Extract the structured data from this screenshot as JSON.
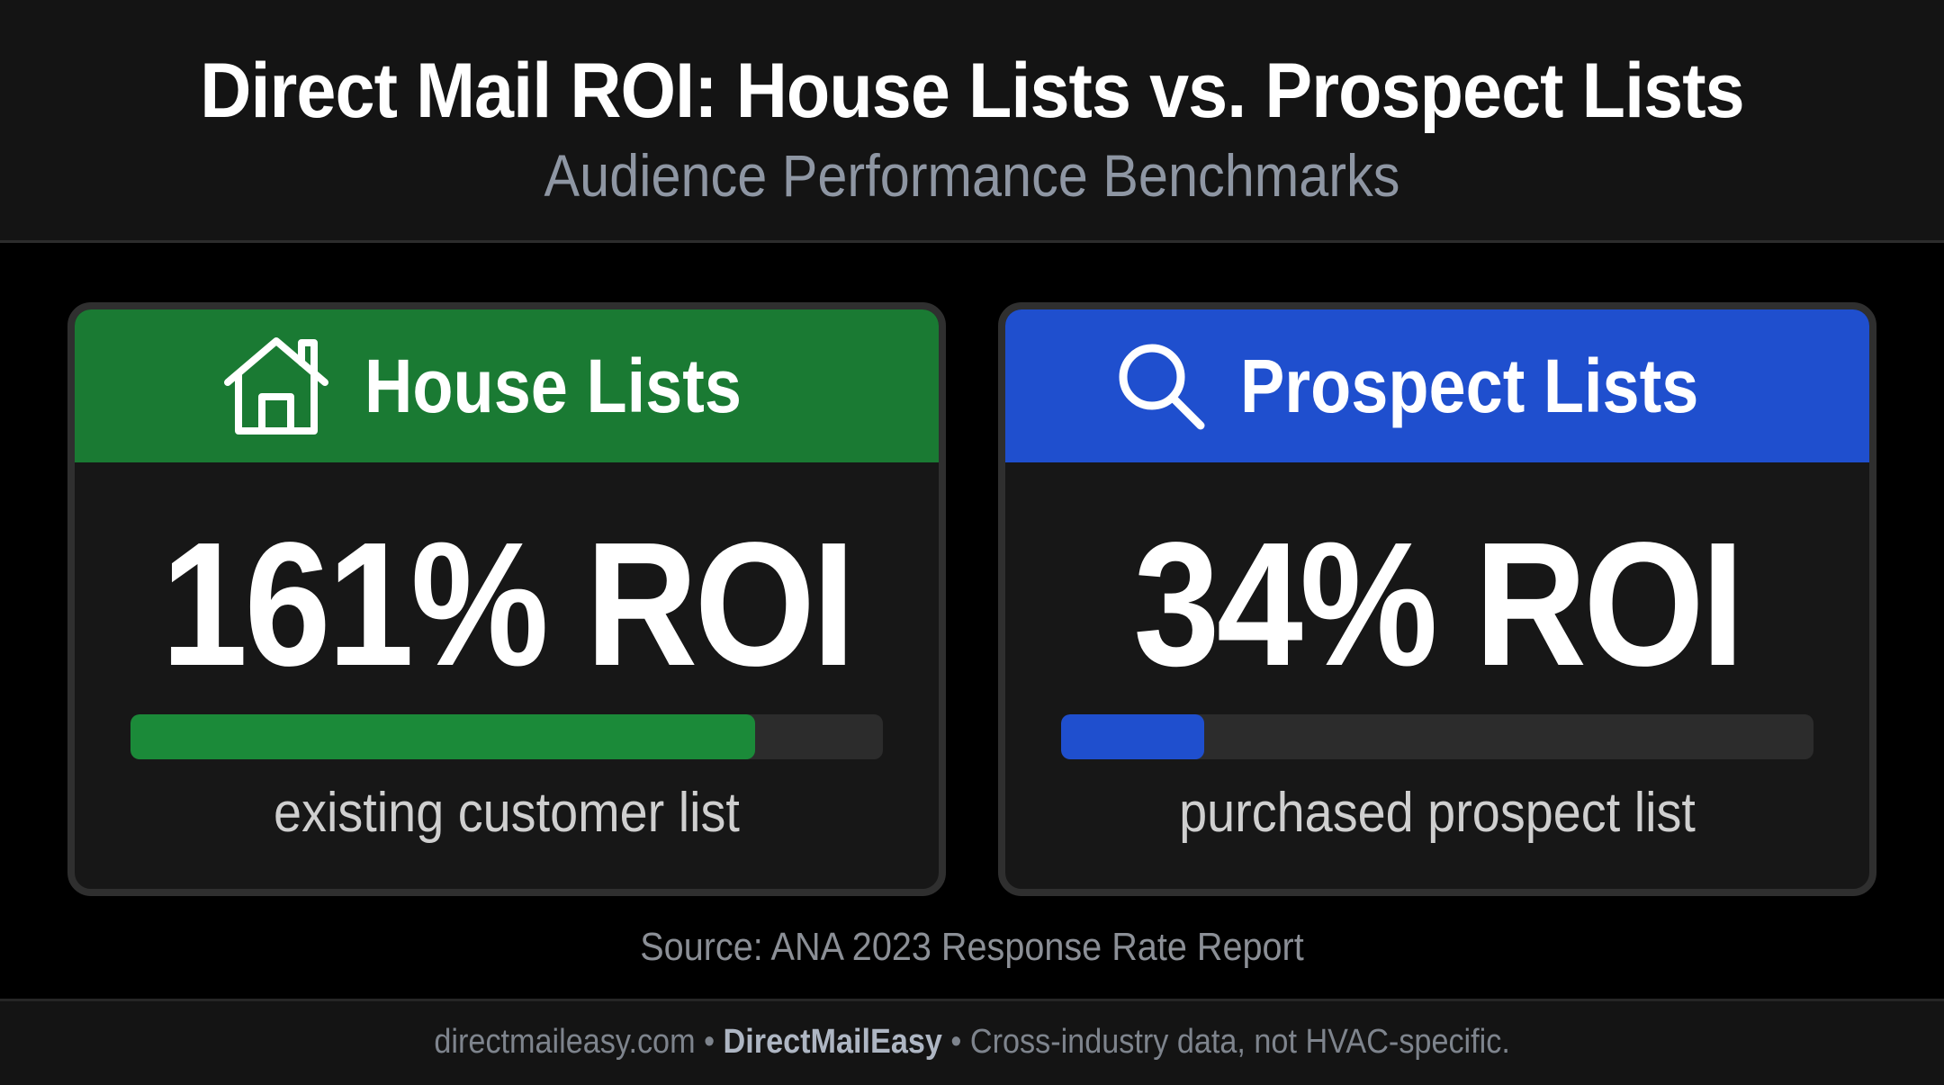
{
  "header": {
    "title": "Direct Mail ROI: House Lists vs. Prospect Lists",
    "subtitle": "Audience Performance Benchmarks"
  },
  "chart_data": {
    "type": "bar",
    "categories": [
      "House Lists",
      "Prospect Lists"
    ],
    "values": [
      161,
      34
    ],
    "unit": "% ROI",
    "value_labels": [
      "161% ROI",
      "34% ROI"
    ],
    "descriptions": [
      "existing customer list",
      "purchased prospect list"
    ],
    "bar_fill_fraction": [
      0.83,
      0.19
    ],
    "colors": [
      "#1a7a33",
      "#1f4fce"
    ],
    "icons": [
      "house-icon",
      "search-icon"
    ]
  },
  "cards": [
    {
      "title": "House Lists",
      "metric": "161% ROI",
      "caption": "existing customer list"
    },
    {
      "title": "Prospect Lists",
      "metric": "34% ROI",
      "caption": "purchased prospect list"
    }
  ],
  "source": "Source: ANA 2023 Response Rate Report",
  "footer": {
    "site": "directmaileasy.com",
    "separator": "•",
    "brand": "DirectMailEasy",
    "note": "Cross-industry data, not HVAC-specific."
  }
}
